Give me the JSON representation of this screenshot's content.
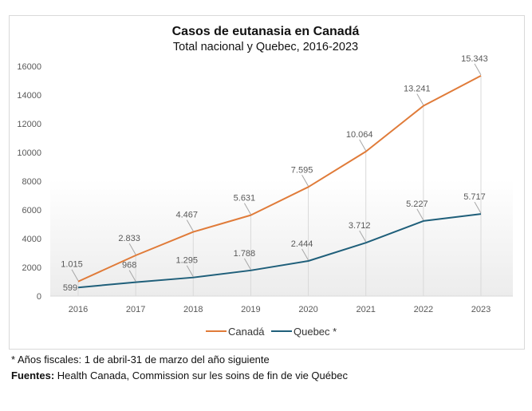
{
  "chart_data": {
    "type": "line",
    "title": "Casos de eutanasia en Canadá",
    "subtitle": "Total nacional y Quebec, 2016-2023",
    "categories": [
      "2016",
      "2017",
      "2018",
      "2019",
      "2020",
      "2021",
      "2022",
      "2023"
    ],
    "series": [
      {
        "name": "Canadá",
        "color": "#E07B39",
        "values": [
          1015,
          2833,
          4467,
          5631,
          7595,
          10064,
          13241,
          15343
        ],
        "labels": [
          "1.015",
          "2.833",
          "4.467",
          "5.631",
          "7.595",
          "10.064",
          "13.241",
          "15.343"
        ]
      },
      {
        "name": "Quebec *",
        "color": "#1F5F7A",
        "values": [
          599,
          968,
          1295,
          1788,
          2444,
          3712,
          5227,
          5717
        ],
        "labels": [
          "599",
          "968",
          "1.295",
          "1.788",
          "2.444",
          "3.712",
          "5.227",
          "5.717"
        ]
      }
    ],
    "ylim": [
      0,
      16000
    ],
    "yticks": [
      "0",
      "2000",
      "4000",
      "6000",
      "8000",
      "10000",
      "12000",
      "14000",
      "16000"
    ],
    "grid": false,
    "legend": "bottom"
  },
  "notes": {
    "footnote": "* Años fiscales: 1 de abril-31 de marzo del año siguiente",
    "sources_label": "Fuentes:",
    "sources_text": " Health Canada, Commission sur les soins de fin de vie Québec"
  }
}
